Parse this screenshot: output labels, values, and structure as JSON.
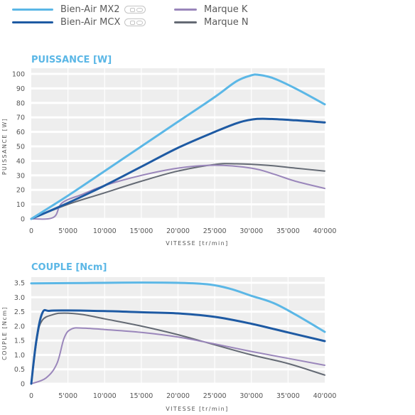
{
  "legend": {
    "items": [
      {
        "label": "Bien-Air MX2",
        "color": "#5bb7e6",
        "icon": "led-icon"
      },
      {
        "label": "Bien-Air MCX",
        "color": "#1e5aa3",
        "icon": "led-icon"
      },
      {
        "label": "Marque K",
        "color": "#9a86bb"
      },
      {
        "label": "Marque N",
        "color": "#646a74"
      }
    ]
  },
  "chart_data": [
    {
      "type": "line",
      "title": "PUISSANCE [W]",
      "xlabel": "VITESSE [tr/min]",
      "ylabel": "PUISSANCE [W]",
      "xlim": [
        0,
        40000
      ],
      "ylim": [
        0,
        100
      ],
      "xticks": [
        0,
        5000,
        10000,
        15000,
        20000,
        25000,
        30000,
        35000,
        40000
      ],
      "xtick_labels": [
        "0",
        "5'000",
        "10'000",
        "15'000",
        "20'000",
        "25'000",
        "30'000",
        "35'000",
        "40'000"
      ],
      "yticks": [
        0,
        10,
        20,
        30,
        40,
        50,
        60,
        70,
        80,
        90,
        100
      ],
      "grid": "horizontal bands",
      "series": [
        {
          "name": "Bien-Air MX2",
          "color": "#5bb7e6",
          "points": [
            [
              0,
              0
            ],
            [
              5000,
              16
            ],
            [
              10000,
              33
            ],
            [
              15000,
              50
            ],
            [
              20000,
              67
            ],
            [
              25000,
              84
            ],
            [
              28000,
              95
            ],
            [
              30000,
              99
            ],
            [
              31000,
              99.3
            ],
            [
              33000,
              97
            ],
            [
              36000,
              90
            ],
            [
              40000,
              79
            ]
          ]
        },
        {
          "name": "Bien-Air MCX",
          "color": "#1e5aa3",
          "points": [
            [
              0,
              0
            ],
            [
              5000,
              11
            ],
            [
              10000,
              23
            ],
            [
              15000,
              36
            ],
            [
              20000,
              49
            ],
            [
              25000,
              60
            ],
            [
              28000,
              66
            ],
            [
              30000,
              68.5
            ],
            [
              32000,
              69
            ],
            [
              36000,
              68
            ],
            [
              40000,
              66.5
            ]
          ]
        },
        {
          "name": "Marque K",
          "color": "#9a86bb",
          "points": [
            [
              0,
              0
            ],
            [
              3000,
              1
            ],
            [
              4200,
              11
            ],
            [
              7000,
              17
            ],
            [
              10000,
              23
            ],
            [
              15000,
              30
            ],
            [
              20000,
              35
            ],
            [
              25000,
              37
            ],
            [
              30000,
              35
            ],
            [
              33000,
              31
            ],
            [
              36000,
              26
            ],
            [
              40000,
              21
            ]
          ]
        },
        {
          "name": "Marque N",
          "color": "#646a74",
          "points": [
            [
              0,
              0
            ],
            [
              5000,
              10
            ],
            [
              10000,
              18
            ],
            [
              15000,
              26
            ],
            [
              20000,
              33
            ],
            [
              25000,
              37.5
            ],
            [
              28000,
              38
            ],
            [
              32000,
              37
            ],
            [
              36000,
              35
            ],
            [
              40000,
              33
            ]
          ]
        }
      ]
    },
    {
      "type": "line",
      "title": "COUPLE [Ncm]",
      "xlabel": "VITESSE [tr/min]",
      "ylabel": "COUPLE [Ncm]",
      "xlim": [
        0,
        40000
      ],
      "ylim": [
        0,
        3.5
      ],
      "xticks": [
        0,
        5000,
        10000,
        15000,
        20000,
        25000,
        30000,
        35000,
        40000
      ],
      "xtick_labels": [
        "0",
        "5'000",
        "10'000",
        "15'000",
        "20'000",
        "25'000",
        "30'000",
        "35'000",
        "40'000"
      ],
      "yticks": [
        0,
        0.5,
        1.0,
        1.5,
        2.0,
        2.5,
        3.0,
        3.5
      ],
      "ytick_labels": [
        "0",
        "0.5",
        "1.0",
        "1.5",
        "2.0",
        "2.5",
        "3.0",
        "3.5"
      ],
      "grid": "horizontal bands",
      "series": [
        {
          "name": "Bien-Air MX2",
          "color": "#5bb7e6",
          "points": [
            [
              0,
              3.48
            ],
            [
              5000,
              3.49
            ],
            [
              10000,
              3.5
            ],
            [
              15000,
              3.51
            ],
            [
              20000,
              3.5
            ],
            [
              24000,
              3.45
            ],
            [
              27000,
              3.3
            ],
            [
              30000,
              3.05
            ],
            [
              33000,
              2.8
            ],
            [
              36000,
              2.4
            ],
            [
              40000,
              1.8
            ]
          ]
        },
        {
          "name": "Bien-Air MCX",
          "color": "#1e5aa3",
          "points": [
            [
              0,
              0
            ],
            [
              700,
              1.5
            ],
            [
              1500,
              2.45
            ],
            [
              2500,
              2.53
            ],
            [
              5000,
              2.54
            ],
            [
              10000,
              2.52
            ],
            [
              15000,
              2.48
            ],
            [
              20000,
              2.44
            ],
            [
              25000,
              2.32
            ],
            [
              30000,
              2.08
            ],
            [
              35000,
              1.78
            ],
            [
              40000,
              1.48
            ]
          ]
        },
        {
          "name": "Marque K",
          "color": "#9a86bb",
          "points": [
            [
              0,
              0
            ],
            [
              2000,
              0.2
            ],
            [
              3500,
              0.7
            ],
            [
              4500,
              1.6
            ],
            [
              5500,
              1.9
            ],
            [
              7000,
              1.93
            ],
            [
              10000,
              1.88
            ],
            [
              15000,
              1.78
            ],
            [
              20000,
              1.62
            ],
            [
              25000,
              1.38
            ],
            [
              30000,
              1.12
            ],
            [
              35000,
              0.88
            ],
            [
              40000,
              0.64
            ]
          ]
        },
        {
          "name": "Marque N",
          "color": "#646a74",
          "points": [
            [
              0,
              0
            ],
            [
              800,
              1.6
            ],
            [
              1500,
              2.2
            ],
            [
              3000,
              2.4
            ],
            [
              4500,
              2.45
            ],
            [
              7000,
              2.4
            ],
            [
              10000,
              2.25
            ],
            [
              15000,
              2.0
            ],
            [
              20000,
              1.7
            ],
            [
              25000,
              1.35
            ],
            [
              30000,
              1.0
            ],
            [
              35000,
              0.7
            ],
            [
              40000,
              0.3
            ]
          ]
        }
      ]
    }
  ]
}
